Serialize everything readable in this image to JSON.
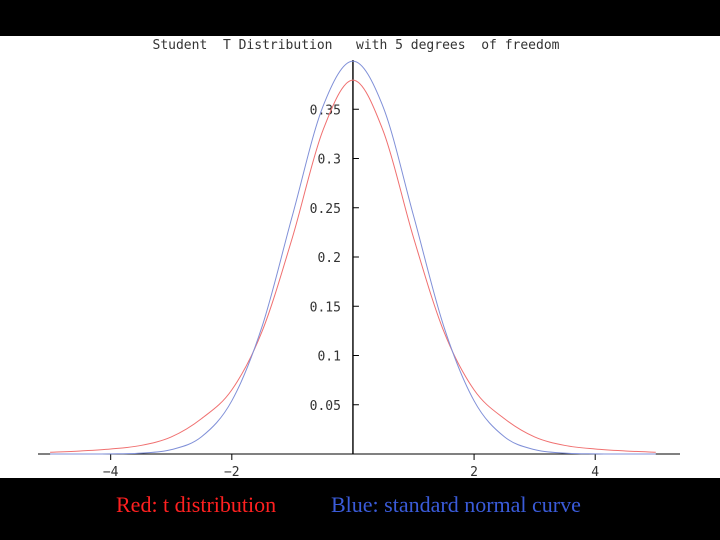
{
  "slide": {
    "background": "#000000",
    "legend": {
      "red_text": "Red: t distribution",
      "red_color": "#ff2020",
      "blue_text": "Blue: standard normal curve",
      "blue_color": "#3a5bd9"
    }
  },
  "chart_data": {
    "type": "line",
    "title": "Student  T Distribution   with 5 degrees  of freedom",
    "xlabel": "",
    "ylabel": "",
    "xlim": [
      -5.2,
      5.4
    ],
    "ylim": [
      0,
      0.4
    ],
    "x_ticks": [
      -4,
      -2,
      2,
      4
    ],
    "x_tick_labels": [
      "−4",
      "−2",
      "2",
      "4"
    ],
    "y_ticks": [
      0.05,
      0.1,
      0.15,
      0.2,
      0.25,
      0.3,
      0.35
    ],
    "y_tick_labels": [
      "0.05",
      "0.1",
      "0.15",
      "0.2",
      "0.25",
      "0.3",
      "0.35"
    ],
    "grid": false,
    "legend": "below plot",
    "x": [
      -5,
      -4.5,
      -4,
      -3.5,
      -3,
      -2.5,
      -2,
      -1.5,
      -1,
      -0.5,
      0,
      0.5,
      1,
      1.5,
      2,
      2.5,
      3,
      3.5,
      4,
      4.5,
      5
    ],
    "series": [
      {
        "color": "#f07070",
        "values": [
          0.0018,
          0.0031,
          0.0051,
          0.0087,
          0.0173,
          0.0359,
          0.0651,
          0.1245,
          0.2197,
          0.3279,
          0.3796,
          0.3279,
          0.2197,
          0.1245,
          0.0651,
          0.0359,
          0.0173,
          0.0087,
          0.0051,
          0.0031,
          0.0018
        ]
      },
      {
        "color": "#8090d8",
        "values": [
          1.5e-06,
          1.6e-05,
          0.000134,
          0.00087,
          0.0044,
          0.0175,
          0.054,
          0.1295,
          0.242,
          0.3521,
          0.3989,
          0.3521,
          0.242,
          0.1295,
          0.054,
          0.0175,
          0.0044,
          0.00087,
          0.000134,
          1.6e-05,
          1.5e-06
        ]
      }
    ]
  }
}
